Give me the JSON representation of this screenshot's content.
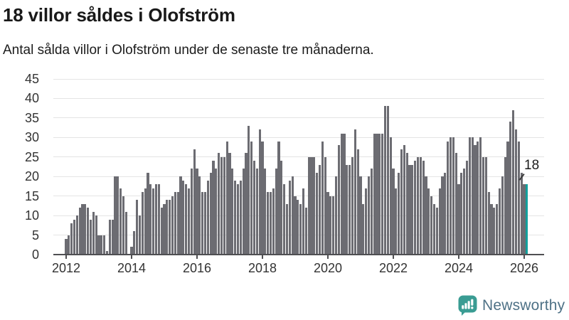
{
  "header": {
    "title": "18 villor såldes i Olofström",
    "subtitle": "Antal sålda villor i Olofström under de senaste tre månaderna."
  },
  "chart_data": {
    "type": "bar",
    "title": "18 villor såldes i Olofström",
    "subtitle": "Antal sålda villor i Olofström under de senaste tre månaderna.",
    "x_start_year": 2012,
    "x_tick_labels": [
      "2012",
      "2014",
      "2016",
      "2018",
      "2020",
      "2022",
      "2024",
      "2026"
    ],
    "y_ticks": [
      0,
      5,
      10,
      15,
      20,
      25,
      30,
      35,
      40,
      45
    ],
    "ylim": [
      0,
      45
    ],
    "grid": true,
    "legend": "none",
    "values": [
      4,
      5,
      8,
      9,
      10,
      12,
      13,
      13,
      12,
      9,
      11,
      10,
      5,
      5,
      5,
      1,
      9,
      9,
      20,
      20,
      17,
      15,
      11,
      0,
      2,
      6,
      14,
      10,
      16,
      17,
      21,
      18,
      17,
      18,
      18,
      12,
      13,
      14,
      14,
      15,
      16,
      16,
      20,
      19,
      18,
      17,
      22,
      27,
      22,
      20,
      16,
      16,
      19,
      21,
      24,
      22,
      26,
      25,
      25,
      29,
      26,
      22,
      19,
      18,
      19,
      22,
      26,
      33,
      29,
      24,
      22,
      32,
      29,
      22,
      16,
      16,
      17,
      22,
      29,
      24,
      18,
      13,
      19,
      20,
      15,
      14,
      13,
      17,
      12,
      25,
      25,
      25,
      21,
      23,
      29,
      25,
      16,
      15,
      15,
      20,
      28,
      31,
      31,
      23,
      23,
      25,
      32,
      27,
      20,
      13,
      17,
      20,
      22,
      31,
      31,
      31,
      31,
      38,
      38,
      30,
      22,
      17,
      21,
      27,
      28,
      26,
      23,
      23,
      24,
      25,
      25,
      24,
      20,
      17,
      15,
      13,
      12,
      17,
      20,
      21,
      29,
      30,
      30,
      26,
      18,
      21,
      22,
      24,
      30,
      30,
      28,
      29,
      30,
      25,
      25,
      16,
      13,
      12,
      13,
      17,
      20,
      25,
      29,
      34,
      37,
      32,
      29,
      21,
      18,
      18
    ],
    "bar_color": "#6c6c72",
    "highlight_last": true,
    "highlight_color": "#12a09c",
    "annotation": {
      "text": "18",
      "value": 18
    },
    "gridline_color": "#e4e4e4",
    "axis_color": "#4f4f52",
    "tick_text_color": "#333333"
  },
  "footer": {
    "brand": "Newsworthy",
    "brand_text_color": "#4e7186",
    "brand_icon_color": "#3a9c93"
  }
}
